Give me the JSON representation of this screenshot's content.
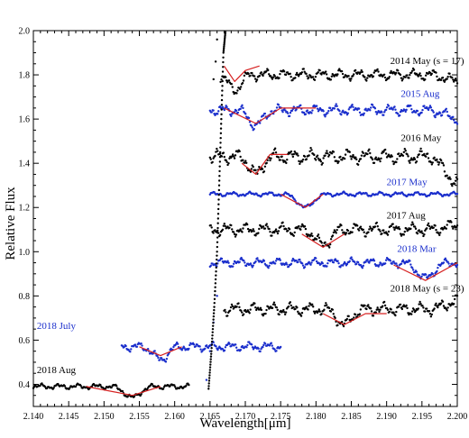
{
  "chart_data": {
    "type": "scatter",
    "xlabel": "Wavelength[μm]",
    "ylabel": "Relative Flux",
    "xlim": [
      2.14,
      2.2
    ],
    "ylim": [
      0.3,
      2.0
    ],
    "xticks": [
      "2.140",
      "2.145",
      "2.150",
      "2.155",
      "2.160",
      "2.165",
      "2.170",
      "2.175",
      "2.180",
      "2.185",
      "2.190",
      "2.195",
      "2.200"
    ],
    "yticks": [
      "0.4",
      "0.6",
      "0.8",
      "1.0",
      "1.2",
      "1.4",
      "1.6",
      "1.8",
      "2.0"
    ],
    "series": [
      {
        "name": "2014 May (s = 17)",
        "color": "#000000",
        "fit_color": "#d62020",
        "x_range": [
          2.1665,
          2.2
        ],
        "baseline": 1.8,
        "noise": 0.03,
        "pre_line_points": [
          [
            2.1655,
            1.78
          ],
          [
            2.1658,
            1.86
          ],
          [
            2.166,
            1.96
          ]
        ],
        "features": [
          {
            "center": 2.1685,
            "depth": 0.07,
            "width": 0.0012
          }
        ],
        "fit_points": [
          [
            2.167,
            1.84
          ],
          [
            2.1685,
            1.77
          ],
          [
            2.17,
            1.82
          ],
          [
            2.172,
            1.84
          ]
        ],
        "end_value": 1.77
      },
      {
        "name": "2015 Aug",
        "color": "#1a2ecc",
        "fit_color": "#d62020",
        "x_range": [
          2.165,
          2.2
        ],
        "baseline": 1.64,
        "noise": 0.03,
        "pre_line_points": [],
        "features": [
          {
            "center": 2.1715,
            "depth": 0.07,
            "width": 0.0013
          }
        ],
        "fit_points": [
          [
            2.167,
            1.65
          ],
          [
            2.1715,
            1.58
          ],
          [
            2.175,
            1.65
          ],
          [
            2.18,
            1.65
          ]
        ],
        "end_value": 1.6
      },
      {
        "name": "2016 May",
        "color": "#000000",
        "fit_color": "#d62020",
        "x_range": [
          2.165,
          2.2
        ],
        "baseline": 1.43,
        "noise": 0.04,
        "pre_line_points": [],
        "features": [
          {
            "center": 2.1715,
            "depth": 0.08,
            "width": 0.0012
          }
        ],
        "fit_points": [
          [
            2.1695,
            1.4
          ],
          [
            2.1715,
            1.35
          ],
          [
            2.1735,
            1.44
          ],
          [
            2.176,
            1.44
          ]
        ],
        "end_value": 1.3
      },
      {
        "name": "2017 May",
        "color": "#1a2ecc",
        "fit_color": "#d62020",
        "x_range": [
          2.165,
          2.2
        ],
        "baseline": 1.26,
        "noise": 0.012,
        "pre_line_points": [],
        "features": [
          {
            "center": 2.1785,
            "depth": 0.06,
            "width": 0.0015
          }
        ],
        "fit_points": [
          [
            2.175,
            1.26
          ],
          [
            2.1785,
            1.2
          ],
          [
            2.181,
            1.26
          ]
        ],
        "end_value": 1.26
      },
      {
        "name": "2017 Aug",
        "color": "#000000",
        "fit_color": "#d62020",
        "x_range": [
          2.165,
          2.2
        ],
        "baseline": 1.1,
        "noise": 0.035,
        "pre_line_points": [],
        "features": [
          {
            "center": 2.181,
            "depth": 0.07,
            "width": 0.0014
          }
        ],
        "fit_points": [
          [
            2.178,
            1.08
          ],
          [
            2.181,
            1.02
          ],
          [
            2.184,
            1.08
          ]
        ],
        "end_value": 1.12
      },
      {
        "name": "2018 Mar",
        "color": "#1a2ecc",
        "fit_color": "#d62020",
        "x_range": [
          2.165,
          2.2
        ],
        "baseline": 0.95,
        "noise": 0.025,
        "pre_line_points": [],
        "features": [
          {
            "center": 2.1955,
            "depth": 0.07,
            "width": 0.0016
          }
        ],
        "fit_points": [
          [
            2.191,
            0.94
          ],
          [
            2.1955,
            0.87
          ],
          [
            2.2,
            0.95
          ]
        ],
        "end_value": 0.95
      },
      {
        "name": "2018 May (s = 23)",
        "color": "#000000",
        "fit_color": "#d62020",
        "x_range": [
          2.167,
          2.2
        ],
        "baseline": 0.74,
        "noise": 0.035,
        "pre_line_points": [],
        "features": [
          {
            "center": 2.184,
            "depth": 0.07,
            "width": 0.0014
          }
        ],
        "fit_points": [
          [
            2.181,
            0.72
          ],
          [
            2.184,
            0.67
          ],
          [
            2.187,
            0.72
          ],
          [
            2.19,
            0.72
          ]
        ],
        "end_value": 0.78
      },
      {
        "name": "2018 July",
        "color": "#1a2ecc",
        "fit_color": "#d62020",
        "x_range": [
          2.1525,
          2.175
        ],
        "baseline": 0.57,
        "noise": 0.025,
        "pre_line_points": [
          [
            2.1645,
            0.42
          ],
          [
            2.165,
            0.55
          ],
          [
            2.1655,
            0.68
          ],
          [
            2.166,
            0.8
          ]
        ],
        "features": [
          {
            "center": 2.158,
            "depth": 0.06,
            "width": 0.0013
          }
        ],
        "fit_points": [
          [
            2.155,
            0.57
          ],
          [
            2.158,
            0.53
          ],
          [
            2.161,
            0.57
          ]
        ],
        "end_value": 0.57
      },
      {
        "name": "2018 Aug",
        "color": "#000000",
        "fit_color": "#d62020",
        "x_range": [
          2.14,
          2.162
        ],
        "baseline": 0.39,
        "noise": 0.015,
        "pre_line_points": [],
        "features": [
          {
            "center": 2.154,
            "depth": 0.05,
            "width": 0.0015
          }
        ],
        "fit_points": [
          [
            2.1475,
            0.39
          ],
          [
            2.154,
            0.35
          ],
          [
            2.158,
            0.39
          ]
        ],
        "end_value": 0.39
      }
    ],
    "spike": {
      "color": "#000000",
      "points": [
        [
          2.1648,
          0.38
        ],
        [
          2.1652,
          0.55
        ],
        [
          2.1656,
          0.75
        ],
        [
          2.166,
          1.0
        ],
        [
          2.1663,
          1.3
        ],
        [
          2.1666,
          1.6
        ],
        [
          2.1669,
          1.9
        ],
        [
          2.1672,
          2.0
        ]
      ]
    },
    "labels": [
      {
        "text": "2014 May (s = 17)",
        "color": "#000000",
        "x": 2.1905,
        "y": 1.85
      },
      {
        "text": "2015 Aug",
        "color": "#1a2ecc",
        "x": 2.192,
        "y": 1.7
      },
      {
        "text": "2016 May",
        "color": "#000000",
        "x": 2.192,
        "y": 1.5
      },
      {
        "text": "2017 May",
        "color": "#1a2ecc",
        "x": 2.19,
        "y": 1.3
      },
      {
        "text": "2017 Aug",
        "color": "#000000",
        "x": 2.19,
        "y": 1.15
      },
      {
        "text": "2018 Mar",
        "color": "#1a2ecc",
        "x": 2.1915,
        "y": 1.0
      },
      {
        "text": "2018 May (s = 23)",
        "color": "#000000",
        "x": 2.1905,
        "y": 0.82
      },
      {
        "text": "2018 July",
        "color": "#1a2ecc",
        "x": 2.1405,
        "y": 0.65
      },
      {
        "text": "2018 Aug",
        "color": "#000000",
        "x": 2.1405,
        "y": 0.45
      }
    ]
  }
}
